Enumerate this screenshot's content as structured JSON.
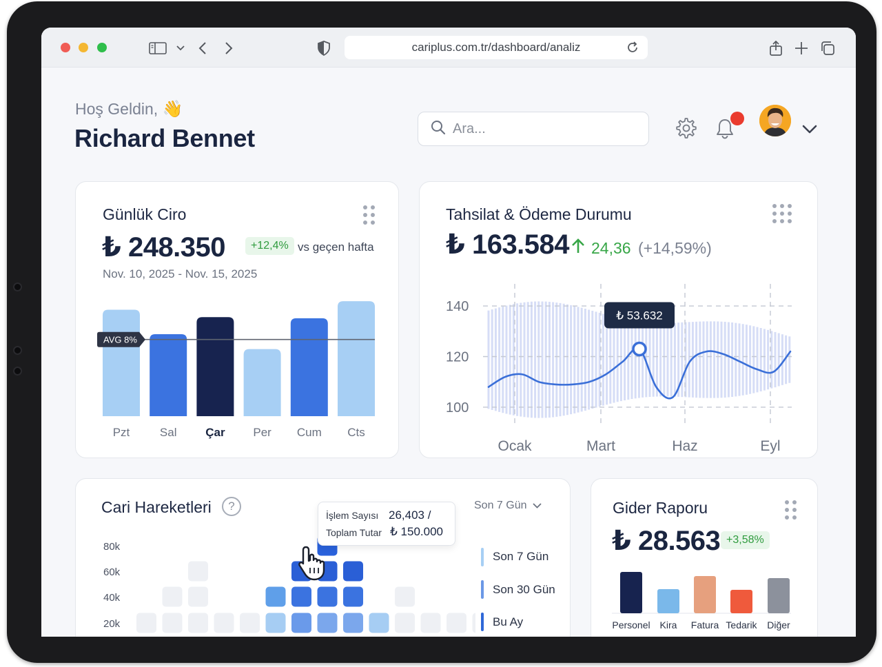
{
  "browser": {
    "url": "cariplus.com.tr/dashboard/analiz"
  },
  "header": {
    "greeting": "Hoş Geldin,",
    "greeting_emoji": "👋",
    "user_name": "Richard Bennet",
    "search_placeholder": "Ara..."
  },
  "daily_revenue": {
    "title": "Günlük Ciro",
    "value": "₺ 248.350",
    "change": "+12,4%",
    "change_label": "vs geçen hafta",
    "date_range": "Nov. 10, 2025 - Nov. 15, 2025",
    "avg_label": "AVG 8%",
    "chart_data": {
      "type": "bar",
      "categories": [
        "Pzt",
        "Sal",
        "Çar",
        "Per",
        "Cum",
        "Cts"
      ],
      "values": [
        100,
        77,
        93,
        63,
        92,
        108
      ],
      "ylim": [
        0,
        110
      ],
      "avg_value": 72,
      "highlight": "Çar",
      "colors": [
        "#a7cff4",
        "#3b73e0",
        "#17234f",
        "#a7cff4",
        "#3b73e0",
        "#a7cff4"
      ]
    }
  },
  "collections": {
    "title": "Tahsilat & Ödeme Durumu",
    "value": "₺ 163.584",
    "delta": "24,36",
    "delta_pct": "(+14,59%)",
    "tooltip": "₺ 53.632",
    "chart_data": {
      "type": "line",
      "x_labels": [
        "Ocak",
        "Mart",
        "Haz",
        "Eyl"
      ],
      "y_ticks": [
        140,
        120,
        100
      ],
      "ylim": [
        97,
        146
      ],
      "x": [
        0,
        1,
        2,
        3,
        4,
        5,
        6,
        7,
        8,
        9,
        10,
        11,
        12,
        13,
        14,
        15,
        16,
        17,
        18
      ],
      "y": [
        108,
        112,
        113,
        110,
        109,
        109,
        110,
        113,
        118,
        123,
        108,
        104,
        118,
        122,
        121,
        118,
        115,
        114,
        122
      ],
      "highlight_index": 9
    }
  },
  "transactions": {
    "title": "Cari Hareketleri",
    "help": "?",
    "tooltip_count_label": "İşlem Sayısı",
    "tooltip_count_value": "26,403 /",
    "tooltip_total_label": "Toplam Tutar",
    "tooltip_total_value": "₺ 150.000",
    "period_selected": "Son 7 Gün",
    "legend": [
      "Son 7 Gün",
      "Son 30 Gün",
      "Bu Ay"
    ],
    "chart_data": {
      "type": "heatmap",
      "y_labels": [
        "80k",
        "60k",
        "40k",
        "20k"
      ],
      "columns": [
        1,
        2,
        3,
        1,
        1,
        2,
        3,
        4,
        3,
        1,
        2,
        1,
        1,
        1
      ],
      "highlight_column": 7
    }
  },
  "expenses": {
    "title": "Gider Raporu",
    "value": "₺ 28.563",
    "change": "+3,58%",
    "chart_data": {
      "type": "bar",
      "categories": [
        "Personel",
        "Kira",
        "Fatura",
        "Tedarik",
        "Diğer"
      ],
      "values": [
        60,
        35,
        54,
        34,
        51
      ],
      "ylim": [
        0,
        62
      ],
      "colors": [
        "#17234f",
        "#7ab8ea",
        "#e6a07e",
        "#ef5a3c",
        "#8c919c"
      ]
    }
  }
}
